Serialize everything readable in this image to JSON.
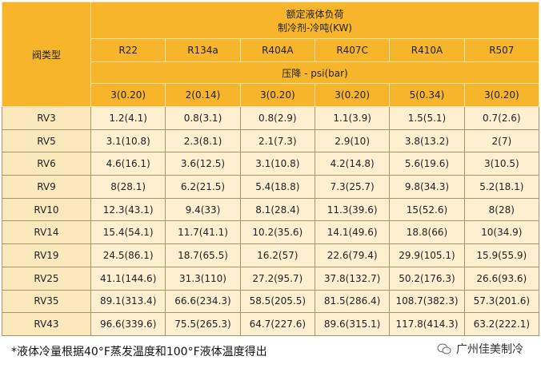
{
  "table": {
    "header": {
      "type_label": "阀类型",
      "load_title": [
        "额定液体负荷",
        "制冷剂-冷吨(KW)"
      ],
      "refrigerants": [
        "R22",
        "R134a",
        "R404A",
        "R407C",
        "R410A",
        "R507"
      ],
      "pressure_drop_label": "压降 - psi(bar)",
      "pressure_drops": [
        "3(0.20)",
        "2(0.14)",
        "3(0.20)",
        "3(0.20)",
        "5(0.34)",
        "3(0.20)"
      ]
    },
    "rows": [
      [
        "RV3",
        "1.2(4.1)",
        "0.8(3.1)",
        "0.8(2.9)",
        "1.1(3.9)",
        "1.5(5.1)",
        "0.7(2.6)"
      ],
      [
        "RV5",
        "3.1(10.8)",
        "2.3(8.1)",
        "2.1(7.3)",
        "2.9(10)",
        "3.8(13.2)",
        "2(7)"
      ],
      [
        "RV6",
        "4.6(16.1)",
        "3.6(12.5)",
        "3.1(10.8)",
        "4.2(14.8)",
        "5.6(19.6)",
        "3(10.5)"
      ],
      [
        "RV9",
        "8(28.1)",
        "6.2(21.5)",
        "5.4(18.8)",
        "7.3(25.7)",
        "9.8(34.3)",
        "5.2(18.1)"
      ],
      [
        "RV10",
        "12.3(43.1)",
        "9.4(33)",
        "8.1(28.4)",
        "11.3(39.6)",
        "15(52.6)",
        "8(28)"
      ],
      [
        "RV14",
        "15.4(54.1)",
        "11.7(41.1)",
        "10.2(35.6)",
        "14.1(49.6)",
        "18.8(66)",
        "10(34.9)"
      ],
      [
        "RV19",
        "24.5(86.1)",
        "18.7(65.5)",
        "16.2(57)",
        "22.6(79.4)",
        "29.9(105.1)",
        "15.9(55.9)"
      ],
      [
        "RV25",
        "41.1(144.6)",
        "31.3(110)",
        "27.2(95.7)",
        "37.8(132.7)",
        "50.2(176.3)",
        "26.6(93.6)"
      ],
      [
        "RV35",
        "89.1(313.4)",
        "66.6(234.3)",
        "58.5(205.5)",
        "81.5(286.4)",
        "108.7(382.3)",
        "57.3(201.6)"
      ],
      [
        "RV43",
        "96.6(339.6)",
        "75.5(265.3)",
        "64.7(227.6)",
        "89.6(315.1)",
        "117.8(414.3)",
        "63.2(222.1)"
      ]
    ]
  },
  "footnote": "*液体冷量根据40°F蒸发温度和100°F液体温度得出",
  "watermark": "广州佳美制冷"
}
